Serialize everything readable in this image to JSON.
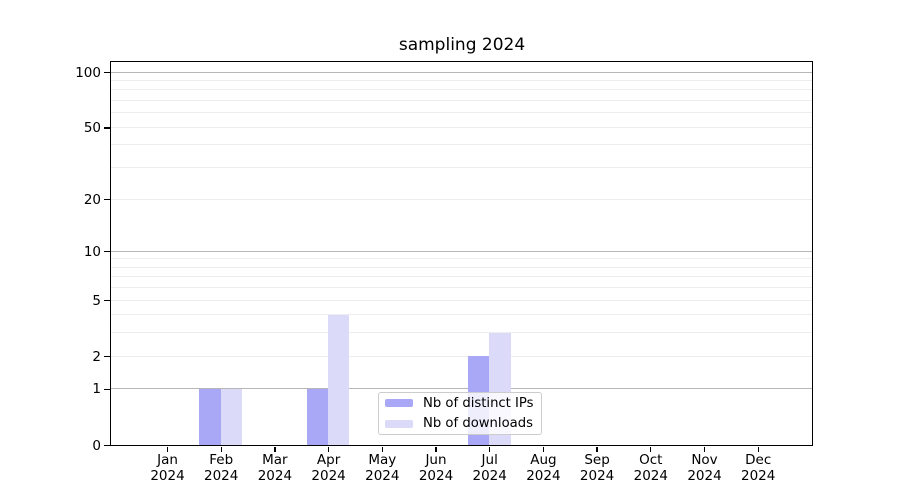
{
  "chart_data": {
    "type": "bar",
    "title": "sampling 2024",
    "x_categories": [
      {
        "line1": "Jan",
        "line2": "2024"
      },
      {
        "line1": "Feb",
        "line2": "2024"
      },
      {
        "line1": "Mar",
        "line2": "2024"
      },
      {
        "line1": "Apr",
        "line2": "2024"
      },
      {
        "line1": "May",
        "line2": "2024"
      },
      {
        "line1": "Jun",
        "line2": "2024"
      },
      {
        "line1": "Jul",
        "line2": "2024"
      },
      {
        "line1": "Aug",
        "line2": "2024"
      },
      {
        "line1": "Sep",
        "line2": "2024"
      },
      {
        "line1": "Oct",
        "line2": "2024"
      },
      {
        "line1": "Nov",
        "line2": "2024"
      },
      {
        "line1": "Dec",
        "line2": "2024"
      }
    ],
    "series": [
      {
        "name": "Nb of distinct IPs",
        "color": "#a8a8f6",
        "values": [
          0,
          1,
          0,
          1,
          0,
          0,
          2,
          0,
          0,
          0,
          0,
          0
        ]
      },
      {
        "name": "Nb of downloads",
        "color": "#dbdbf9",
        "values": [
          0,
          1,
          0,
          4,
          0,
          0,
          3,
          0,
          0,
          0,
          0,
          0
        ]
      }
    ],
    "xlabel": "",
    "ylabel": "",
    "yscale": "symlog-log1p",
    "ylim": [
      0,
      113.5
    ],
    "yticks_labeled": [
      0,
      1,
      2,
      5,
      10,
      20,
      50,
      100
    ],
    "gridlines_decade": [
      1,
      10,
      100
    ],
    "gridlines_minor": [
      2,
      3,
      4,
      5,
      6,
      7,
      8,
      9,
      20,
      30,
      40,
      50,
      60,
      70,
      80,
      90
    ],
    "grid_on": true,
    "legend_position": "lower center, inside plot",
    "colors": {
      "grid_minor": "#ededed",
      "grid_decade": "#b6b6b6",
      "axis": "#000000",
      "legend_border": "#cccccc"
    }
  }
}
